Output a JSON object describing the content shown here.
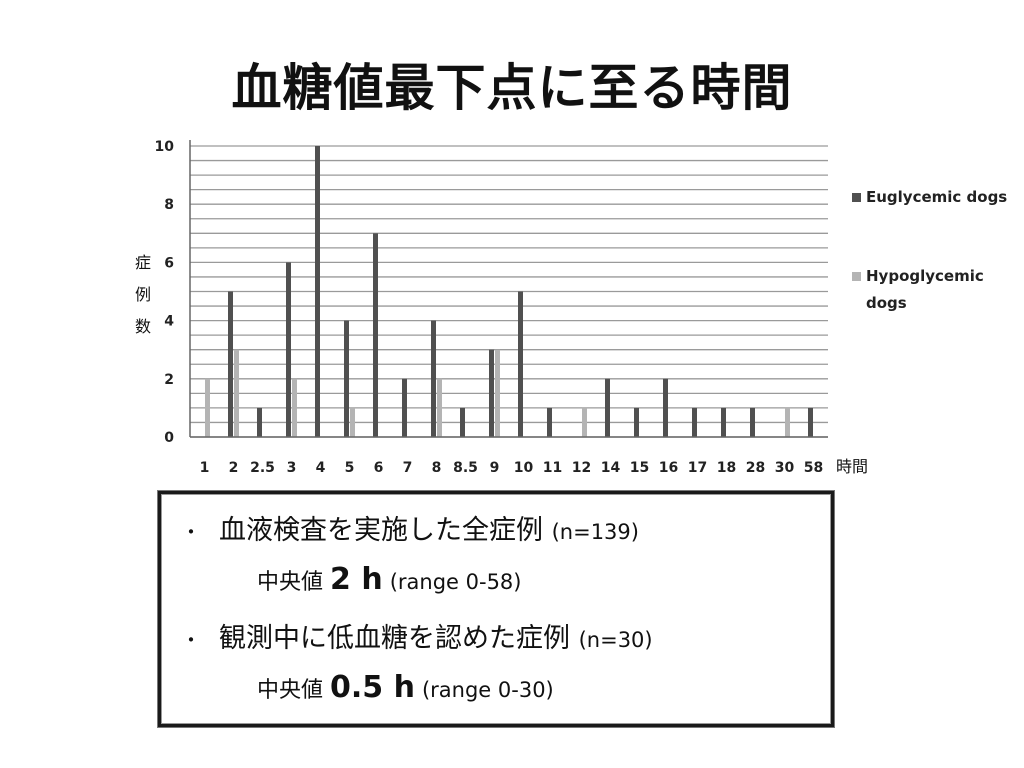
{
  "title": "血糖値最下点に至る時間",
  "chart_data": {
    "type": "bar",
    "categories": [
      "1",
      "2",
      "2.5",
      "3",
      "4",
      "5",
      "6",
      "7",
      "8",
      "8.5",
      "9",
      "10",
      "11",
      "12",
      "14",
      "15",
      "16",
      "17",
      "18",
      "28",
      "30",
      "58"
    ],
    "series": [
      {
        "name": "Euglycemic dogs",
        "color": "#505050",
        "values": [
          0,
          5,
          1,
          6,
          10,
          4,
          7,
          2,
          4,
          1,
          3,
          5,
          1,
          0,
          2,
          1,
          2,
          1,
          1,
          1,
          0,
          1
        ]
      },
      {
        "name": "Hypoglycemic dogs",
        "color": "#b4b4b4",
        "values": [
          2,
          3,
          0,
          2,
          0,
          1,
          0,
          0,
          2,
          0,
          3,
          0,
          0,
          1,
          0,
          0,
          0,
          0,
          0,
          0,
          1,
          0
        ]
      }
    ],
    "ylim": [
      0,
      10
    ],
    "yticks": [
      0,
      2,
      4,
      6,
      8,
      10
    ],
    "ylabel": "症例数",
    "xlabel": "時間",
    "grid": true,
    "legend_position": "right"
  },
  "summary": {
    "line1": {
      "bullet": "・",
      "text": "血液検査を実施した全症例",
      "n": "(n=139)"
    },
    "line2": {
      "label": "中央値",
      "value": "2 h",
      "range": "(range 0-58)"
    },
    "line3": {
      "bullet": "・",
      "text": "観測中に低血糖を認めた症例",
      "n": "(n=30)"
    },
    "line4": {
      "label": "中央値",
      "value": "0.5 h",
      "range": "(range 0-30)"
    }
  }
}
